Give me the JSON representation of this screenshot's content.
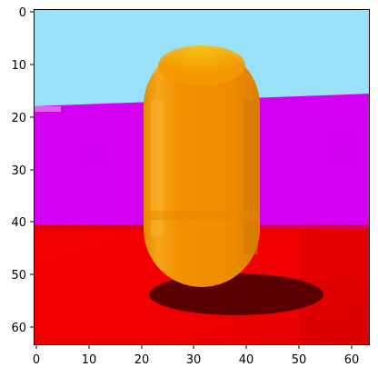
{
  "image": {
    "type": "pixelated-render",
    "subject": "orange capsule on red floor with shadow",
    "colors": {
      "sky": "#98e1f6",
      "wall": "#d400f4",
      "floor": "#f00000",
      "floor_far": "#d80000",
      "capsule_main": "#f39100",
      "capsule_highlight": "#f8ae1a",
      "capsule_top": "#f7c51a",
      "capsule_shade": "#d97f00",
      "shadow": "#5a0000",
      "frame": "#000000"
    }
  },
  "axes": {
    "x_ticks": [
      "0",
      "10",
      "20",
      "30",
      "40",
      "50",
      "60"
    ],
    "y_ticks": [
      "0",
      "10",
      "20",
      "30",
      "40",
      "50",
      "60"
    ],
    "xlim": [
      -0.5,
      63.5
    ],
    "ylim": [
      63.5,
      -0.5
    ]
  }
}
